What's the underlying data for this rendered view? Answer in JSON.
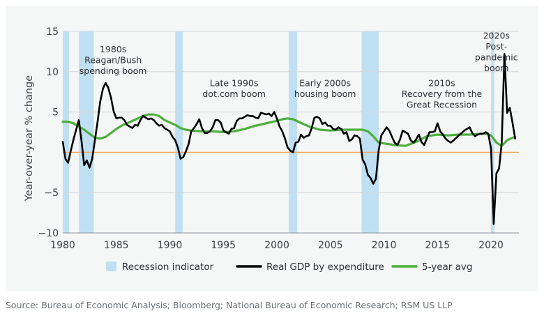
{
  "chart_data": {
    "type": "line",
    "title": "",
    "xlabel": "",
    "ylabel": "Year-over-year % change",
    "xlim": [
      1980,
      2022.6
    ],
    "ylim": [
      -10,
      15
    ],
    "x_ticks": [
      "1980",
      "1985",
      "1990",
      "1995",
      "2000",
      "2005",
      "2010",
      "2015",
      "2020"
    ],
    "y_ticks": [
      "15",
      "10",
      "5",
      "−5",
      "−10"
    ],
    "grid": true,
    "legend_position": "bottom",
    "recessions": [
      [
        1980.0,
        1980.6
      ],
      [
        1981.5,
        1982.9
      ],
      [
        1990.5,
        1991.2
      ],
      [
        2001.1,
        2001.9
      ],
      [
        2007.9,
        2009.5
      ],
      [
        2020.0,
        2020.3
      ]
    ],
    "series": [
      {
        "name": "Real GDP by expenditure",
        "color": "#000000",
        "x": [
          1980.0,
          1980.25,
          1980.5,
          1980.75,
          1981.0,
          1981.25,
          1981.5,
          1981.75,
          1982.0,
          1982.25,
          1982.5,
          1982.75,
          1983.0,
          1983.25,
          1983.5,
          1983.75,
          1984.0,
          1984.25,
          1984.5,
          1984.75,
          1985.0,
          1985.25,
          1985.5,
          1985.75,
          1986.0,
          1986.25,
          1986.5,
          1986.75,
          1987.0,
          1987.25,
          1987.5,
          1987.75,
          1988.0,
          1988.25,
          1988.5,
          1988.75,
          1989.0,
          1989.25,
          1989.5,
          1989.75,
          1990.0,
          1990.25,
          1990.5,
          1990.75,
          1991.0,
          1991.25,
          1991.5,
          1991.75,
          1992.0,
          1992.25,
          1992.5,
          1992.75,
          1993.0,
          1993.25,
          1993.5,
          1993.75,
          1994.0,
          1994.25,
          1994.5,
          1994.75,
          1995.0,
          1995.25,
          1995.5,
          1995.75,
          1996.0,
          1996.25,
          1996.5,
          1996.75,
          1997.0,
          1997.25,
          1997.5,
          1997.75,
          1998.0,
          1998.25,
          1998.5,
          1998.75,
          1999.0,
          1999.25,
          1999.5,
          1999.75,
          2000.0,
          2000.25,
          2000.5,
          2000.75,
          2001.0,
          2001.25,
          2001.5,
          2001.75,
          2002.0,
          2002.25,
          2002.5,
          2002.75,
          2003.0,
          2003.25,
          2003.5,
          2003.75,
          2004.0,
          2004.25,
          2004.5,
          2004.75,
          2005.0,
          2005.25,
          2005.5,
          2005.75,
          2006.0,
          2006.25,
          2006.5,
          2006.75,
          2007.0,
          2007.25,
          2007.5,
          2007.75,
          2008.0,
          2008.25,
          2008.5,
          2008.75,
          2009.0,
          2009.25,
          2009.5,
          2009.75,
          2010.0,
          2010.25,
          2010.5,
          2010.75,
          2011.0,
          2011.25,
          2011.5,
          2011.75,
          2012.0,
          2012.25,
          2012.5,
          2012.75,
          2013.0,
          2013.25,
          2013.5,
          2013.75,
          2014.0,
          2014.25,
          2014.5,
          2014.75,
          2015.0,
          2015.25,
          2015.5,
          2015.75,
          2016.0,
          2016.25,
          2016.5,
          2016.75,
          2017.0,
          2017.25,
          2017.5,
          2017.75,
          2018.0,
          2018.25,
          2018.5,
          2018.75,
          2019.0,
          2019.25,
          2019.5,
          2019.75,
          2020.0,
          2020.25,
          2020.5,
          2020.75,
          2021.0,
          2021.25,
          2021.5,
          2021.75,
          2022.0,
          2022.25
        ],
        "values": [
          1.3,
          -0.8,
          -1.3,
          0.2,
          1.6,
          2.8,
          4.0,
          1.4,
          -1.6,
          -1.0,
          -1.9,
          -0.8,
          1.5,
          3.8,
          6.3,
          7.9,
          8.6,
          8.0,
          6.8,
          5.1,
          4.2,
          4.3,
          4.3,
          4.0,
          3.4,
          3.2,
          3.0,
          3.4,
          3.3,
          4.0,
          4.5,
          4.3,
          4.1,
          4.2,
          4.0,
          3.6,
          3.3,
          3.4,
          3.0,
          2.8,
          2.6,
          1.9,
          1.5,
          0.6,
          -0.8,
          -0.6,
          0.1,
          1.0,
          2.6,
          3.0,
          3.5,
          4.1,
          3.0,
          2.4,
          2.4,
          2.6,
          3.1,
          4.0,
          4.0,
          3.7,
          2.7,
          2.5,
          2.3,
          2.9,
          3.0,
          3.9,
          4.2,
          4.2,
          4.4,
          4.6,
          4.5,
          4.5,
          4.3,
          4.2,
          4.9,
          4.8,
          4.7,
          4.8,
          4.5,
          5.0,
          4.2,
          3.2,
          2.6,
          1.7,
          0.6,
          0.2,
          0.0,
          1.2,
          1.3,
          2.2,
          1.8,
          2.0,
          2.1,
          3.0,
          4.3,
          4.4,
          4.2,
          3.5,
          3.7,
          3.3,
          3.3,
          2.9,
          2.8,
          3.1,
          2.9,
          2.3,
          2.5,
          1.4,
          1.6,
          2.1,
          2.0,
          1.7,
          -0.9,
          -1.5,
          -2.8,
          -3.2,
          -3.9,
          -3.3,
          0.2,
          2.1,
          2.6,
          3.1,
          2.7,
          1.9,
          1.2,
          0.9,
          1.6,
          2.7,
          2.5,
          2.3,
          1.5,
          1.2,
          1.6,
          2.2,
          1.3,
          0.9,
          1.7,
          2.5,
          2.5,
          2.6,
          3.6,
          2.6,
          2.2,
          1.7,
          1.4,
          1.2,
          1.5,
          1.8,
          2.1,
          2.4,
          2.7,
          2.9,
          3.1,
          2.4,
          2.0,
          2.2,
          2.3,
          2.3,
          2.5,
          2.3,
          0.4,
          -8.9,
          -2.6,
          -2.0,
          1.2,
          12.2,
          4.9,
          5.5,
          3.7,
          1.7
        ]
      },
      {
        "name": "5-year avg",
        "color": "#4caf3c",
        "x": [
          1980.0,
          1980.5,
          1981.0,
          1981.5,
          1982.0,
          1982.5,
          1983.0,
          1983.5,
          1984.0,
          1984.5,
          1985.0,
          1985.5,
          1986.0,
          1986.5,
          1987.0,
          1987.5,
          1988.0,
          1988.5,
          1989.0,
          1989.5,
          1990.0,
          1990.5,
          1991.0,
          1991.5,
          1992.0,
          1993.0,
          1994.0,
          1995.0,
          1996.0,
          1997.0,
          1998.0,
          1999.0,
          2000.0,
          2000.5,
          2001.0,
          2001.5,
          2002.0,
          2003.0,
          2004.0,
          2005.0,
          2006.0,
          2007.0,
          2008.0,
          2008.5,
          2009.0,
          2009.5,
          2010.0,
          2011.0,
          2012.0,
          2013.0,
          2014.0,
          2015.0,
          2016.0,
          2017.0,
          2018.0,
          2019.0,
          2019.5,
          2020.0,
          2020.5,
          2021.0,
          2021.5,
          2022.0,
          2022.25
        ],
        "values": [
          3.8,
          3.8,
          3.6,
          3.2,
          2.8,
          2.3,
          1.8,
          1.7,
          1.9,
          2.4,
          2.9,
          3.3,
          3.6,
          3.9,
          4.2,
          4.5,
          4.7,
          4.7,
          4.5,
          4.0,
          3.7,
          3.4,
          3.0,
          2.8,
          2.7,
          2.6,
          2.6,
          2.5,
          2.6,
          2.9,
          3.3,
          3.6,
          3.9,
          4.1,
          4.2,
          4.1,
          3.8,
          3.2,
          2.8,
          2.7,
          2.8,
          2.8,
          2.8,
          2.6,
          2.0,
          1.2,
          1.1,
          0.9,
          0.8,
          1.3,
          2.0,
          2.2,
          2.1,
          2.2,
          2.2,
          2.3,
          2.3,
          2.1,
          1.2,
          0.8,
          1.5,
          1.8,
          1.9
        ]
      }
    ],
    "annotations": [
      {
        "lines": [
          "1980s",
          "Reagan/Bush",
          "spending boom"
        ],
        "x": 1984.7,
        "y": 12.4
      },
      {
        "lines": [
          "Late 1990s",
          "dot.com boom"
        ],
        "x": 1996.0,
        "y": 8.2
      },
      {
        "lines": [
          "Early 2000s",
          "housing boom"
        ],
        "x": 2004.5,
        "y": 8.2
      },
      {
        "lines": [
          "2010s",
          "Recovery from the",
          "Great Recession"
        ],
        "x": 2015.4,
        "y": 8.2
      },
      {
        "lines": [
          "2020s",
          "Post-",
          "pandemic",
          "boom"
        ],
        "x": 2020.5,
        "y": 14.1
      }
    ],
    "legend": [
      {
        "label": "Recession indicator",
        "kind": "box",
        "color": "#bfe0f2"
      },
      {
        "label": "Real GDP by expenditure",
        "kind": "line",
        "color": "#000000"
      },
      {
        "label": "5-year avg",
        "kind": "line",
        "color": "#4caf3c"
      }
    ],
    "zero_line_color": "#f2a55c"
  },
  "source": "Source: Bureau of Economic Analysis; Bloomberg; National Bureau of Economic Research; RSM US LLP"
}
